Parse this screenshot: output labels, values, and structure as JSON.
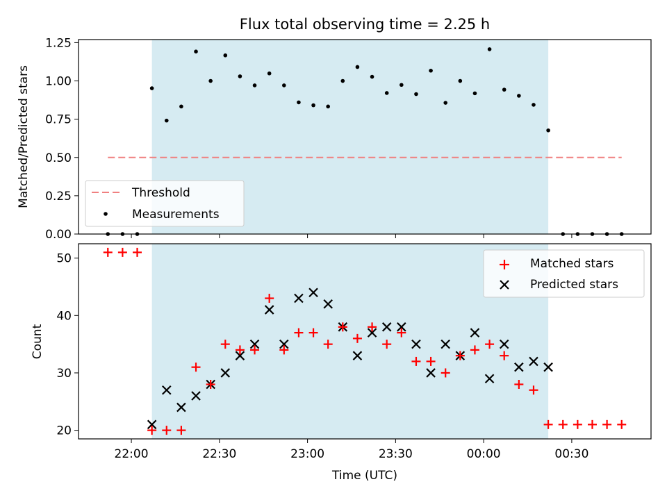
{
  "chart_data": [
    {
      "type": "scatter",
      "title": "Flux total observing time = 2.25 h",
      "xlabel": "",
      "ylabel": "Matched/Predicted stars",
      "ylim": [
        0,
        1.27
      ],
      "yticks": [
        "0.00",
        "0.25",
        "0.50",
        "0.75",
        "1.00",
        "1.25"
      ],
      "ytick_values": [
        0,
        0.25,
        0.5,
        0.75,
        1.0,
        1.25
      ],
      "shaded_region": {
        "x_start": "22:07",
        "x_end": "00:22",
        "color": "#add8e6"
      },
      "threshold": {
        "name": "Threshold",
        "value": 0.5,
        "x_start": "21:52",
        "x_end": "00:47",
        "color": "#f08080",
        "style": "dashed"
      },
      "series": [
        {
          "name": "Measurements",
          "color": "#000000",
          "marker": "dot",
          "x": [
            "21:52",
            "21:57",
            "22:02",
            "22:07",
            "22:12",
            "22:17",
            "22:22",
            "22:27",
            "22:32",
            "22:37",
            "22:42",
            "22:47",
            "22:52",
            "22:57",
            "23:02",
            "23:07",
            "23:12",
            "23:17",
            "23:22",
            "23:27",
            "23:32",
            "23:37",
            "23:42",
            "23:47",
            "23:52",
            "23:57",
            "00:02",
            "00:07",
            "00:12",
            "00:17",
            "00:22",
            "00:27",
            "00:32",
            "00:37",
            "00:42",
            "00:47"
          ],
          "y": [
            0,
            0,
            0,
            0.952,
            0.741,
            0.833,
            1.192,
            1.0,
            1.167,
            1.03,
            0.971,
            1.049,
            0.971,
            0.86,
            0.841,
            0.833,
            1.0,
            1.091,
            1.027,
            0.921,
            0.974,
            0.914,
            1.067,
            0.857,
            1.0,
            0.919,
            1.207,
            0.943,
            0.903,
            0.844,
            0.677,
            0,
            0,
            0,
            0,
            0
          ]
        }
      ]
    },
    {
      "type": "scatter",
      "title": "",
      "xlabel": "Time (UTC)",
      "ylabel": "Count",
      "ylim": [
        18.5,
        52.5
      ],
      "yticks": [
        "20",
        "30",
        "40",
        "50"
      ],
      "ytick_values": [
        20,
        30,
        40,
        50
      ],
      "xlim": [
        "21:42",
        "00:57"
      ],
      "xticks": [
        "22:00",
        "22:30",
        "23:00",
        "23:30",
        "00:00",
        "00:30"
      ],
      "shaded_region": {
        "x_start": "22:07",
        "x_end": "00:22",
        "color": "#add8e6"
      },
      "series": [
        {
          "name": "Matched stars",
          "color": "#ff0000",
          "marker": "plus",
          "x": [
            "21:52",
            "21:57",
            "22:02",
            "22:07",
            "22:12",
            "22:17",
            "22:22",
            "22:27",
            "22:32",
            "22:37",
            "22:42",
            "22:47",
            "22:52",
            "22:57",
            "23:02",
            "23:07",
            "23:12",
            "23:17",
            "23:22",
            "23:27",
            "23:32",
            "23:37",
            "23:42",
            "23:47",
            "23:52",
            "23:57",
            "00:02",
            "00:07",
            "00:12",
            "00:17",
            "00:22",
            "00:27",
            "00:32",
            "00:37",
            "00:42",
            "00:47"
          ],
          "y": [
            51,
            51,
            51,
            20,
            20,
            20,
            31,
            28,
            35,
            34,
            34,
            43,
            34,
            37,
            37,
            35,
            38,
            36,
            38,
            35,
            37,
            32,
            32,
            30,
            33,
            34,
            35,
            33,
            28,
            27,
            21,
            21,
            21,
            21,
            21,
            21
          ]
        },
        {
          "name": "Predicted stars",
          "color": "#000000",
          "marker": "x",
          "x": [
            "22:07",
            "22:12",
            "22:17",
            "22:22",
            "22:27",
            "22:32",
            "22:37",
            "22:42",
            "22:47",
            "22:52",
            "22:57",
            "23:02",
            "23:07",
            "23:12",
            "23:17",
            "23:22",
            "23:27",
            "23:32",
            "23:37",
            "23:42",
            "23:47",
            "23:52",
            "23:57",
            "00:02",
            "00:07",
            "00:12",
            "00:17",
            "00:22"
          ],
          "y": [
            21,
            27,
            24,
            26,
            28,
            30,
            33,
            35,
            41,
            35,
            43,
            44,
            42,
            38,
            33,
            37,
            38,
            38,
            35,
            30,
            35,
            33,
            37,
            29,
            35,
            31,
            32,
            31
          ]
        }
      ]
    }
  ]
}
